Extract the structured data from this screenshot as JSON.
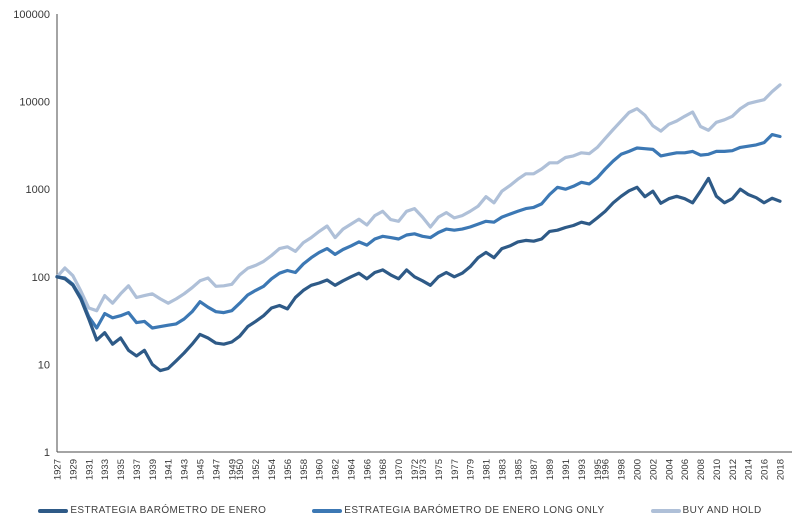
{
  "chart_data": {
    "type": "line",
    "title": "",
    "xlabel": "",
    "ylabel": "",
    "y_scale": "log",
    "grid": false,
    "legend_position": "bottom",
    "axis_color": "#4a4a4a",
    "text_color": "#383838",
    "background_color": "#ffffff",
    "y_ticks": [
      1,
      10,
      100,
      1000,
      10000,
      100000
    ],
    "ylim": [
      1,
      100000
    ],
    "x_range": [
      1927,
      2018
    ],
    "x_step": 1,
    "x_tick_labels": [
      "1927",
      "1929",
      "1931",
      "1933",
      "1935",
      "1937",
      "1939",
      "1941",
      "1943",
      "1945",
      "1947",
      "1949",
      "1950",
      "1952",
      "1954",
      "1956",
      "1958",
      "1960",
      "1962",
      "1964",
      "1966",
      "1968",
      "1970",
      "1972",
      "1973",
      "1975",
      "1977",
      "1979",
      "1981",
      "1983",
      "1985",
      "1987",
      "1989",
      "1991",
      "1993",
      "1995",
      "1996",
      "1998",
      "2000",
      "2002",
      "2004",
      "2006",
      "2008",
      "2010",
      "2012",
      "2014",
      "2016",
      "2018"
    ],
    "series": [
      {
        "name": "ESTRATEGIA BARÓMETRO DE ENERO",
        "color": "#2E5A87",
        "values": [
          100,
          95,
          80,
          56,
          33,
          19,
          23,
          17,
          20,
          14.5,
          12.5,
          14.5,
          10,
          8.5,
          9,
          11,
          13.5,
          17,
          22,
          20,
          17.5,
          17,
          18,
          21,
          27,
          31,
          36,
          44,
          47,
          43,
          58,
          70,
          80,
          85,
          92,
          80,
          90,
          100,
          110,
          95,
          112,
          120,
          105,
          95,
          120,
          100,
          90,
          80,
          100,
          112,
          100,
          110,
          130,
          165,
          190,
          165,
          210,
          225,
          250,
          260,
          255,
          270,
          330,
          340,
          365,
          385,
          420,
          400,
          470,
          560,
          700,
          830,
          960,
          1050,
          820,
          950,
          690,
          780,
          830,
          780,
          700,
          950,
          1330,
          830,
          700,
          780,
          1000,
          870,
          800,
          700,
          790,
          730
        ]
      },
      {
        "name": "ESTRATEGIA BARÓMETRO DE ENERO LONG ONLY",
        "color": "#3C78B4",
        "values": [
          100,
          97,
          82,
          58,
          35,
          26,
          38,
          34,
          36,
          39,
          30,
          31,
          26,
          27,
          28,
          29,
          33,
          40,
          52,
          45,
          40,
          39,
          41,
          50,
          62,
          70,
          78,
          95,
          110,
          118,
          112,
          140,
          165,
          190,
          210,
          180,
          205,
          225,
          250,
          230,
          270,
          290,
          280,
          270,
          300,
          310,
          290,
          280,
          320,
          350,
          340,
          350,
          370,
          400,
          430,
          420,
          480,
          520,
          560,
          600,
          620,
          680,
          870,
          1050,
          1000,
          1080,
          1200,
          1150,
          1350,
          1700,
          2100,
          2500,
          2700,
          2950,
          2900,
          2850,
          2400,
          2500,
          2600,
          2600,
          2700,
          2450,
          2500,
          2700,
          2700,
          2750,
          3000,
          3100,
          3200,
          3400,
          4200,
          4000
        ]
      },
      {
        "name": "BUY AND HOLD",
        "color": "#AFC0D8",
        "values": [
          100,
          126,
          103,
          69,
          44,
          41,
          61,
          50,
          64,
          79,
          58,
          61,
          64,
          56,
          50,
          56,
          64,
          75,
          90,
          97,
          78,
          79,
          82,
          105,
          125,
          135,
          150,
          175,
          210,
          220,
          195,
          245,
          280,
          330,
          380,
          280,
          350,
          400,
          455,
          390,
          500,
          560,
          450,
          430,
          560,
          600,
          480,
          370,
          480,
          540,
          470,
          500,
          560,
          640,
          820,
          700,
          950,
          1100,
          1300,
          1500,
          1500,
          1700,
          2000,
          2000,
          2300,
          2400,
          2600,
          2550,
          3000,
          3800,
          4800,
          6000,
          7500,
          8300,
          7000,
          5300,
          4600,
          5500,
          6000,
          6800,
          7600,
          5200,
          4700,
          5800,
          6200,
          6800,
          8300,
          9500,
          10000,
          10500,
          13000,
          15500
        ]
      }
    ]
  }
}
